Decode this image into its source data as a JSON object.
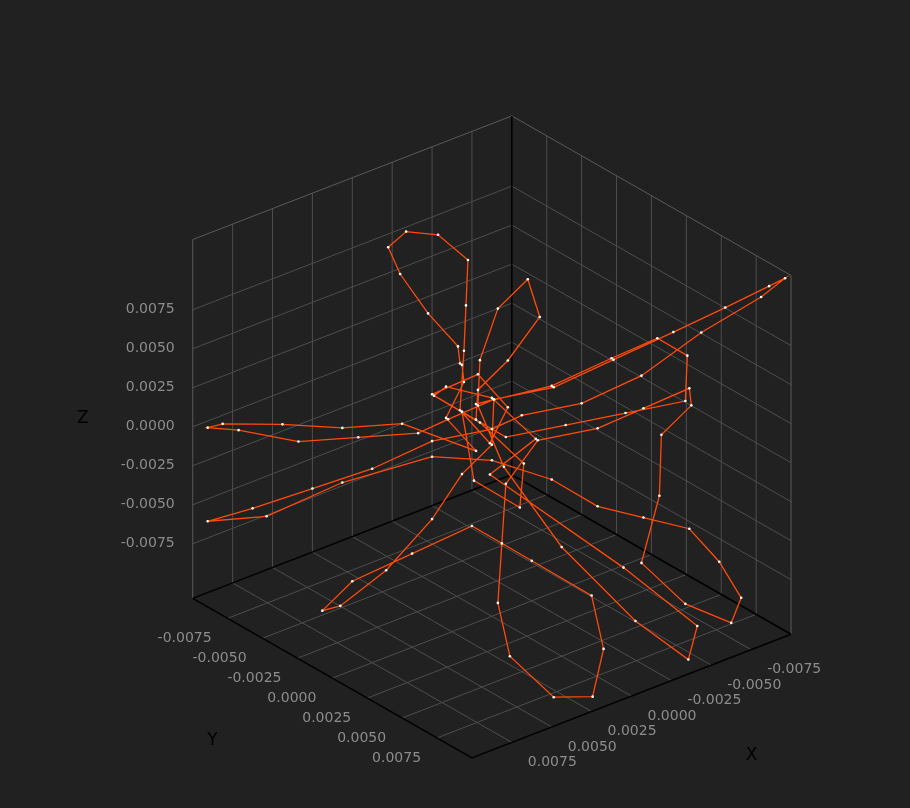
{
  "chart_data": {
    "type": "line3d",
    "xlabel": "X",
    "ylabel": "Y",
    "zlabel": "Z",
    "color": "#ff4a0a",
    "marker": "dot",
    "line_style": "solid",
    "grid": true,
    "xlim": [
      -0.01,
      0.01
    ],
    "ylim": [
      -0.01,
      0.01
    ],
    "zlim": [
      -0.011,
      0.012
    ],
    "xticks": [
      -0.0075,
      {
        "value": -0.005,
        "label": "-0.0050"
      },
      -0.0025,
      {
        "value": 0,
        "label": "0.0000"
      },
      0.0025,
      {
        "value": 0.005,
        "label": "0.0050"
      },
      0.0075
    ],
    "yticks": [
      -0.0075,
      {
        "value": -0.005,
        "label": "-0.0050"
      },
      -0.0025,
      {
        "value": 0,
        "label": "0.0000"
      },
      0.0025,
      {
        "value": 0.005,
        "label": "0.0050"
      },
      0.0075
    ],
    "zticks": [
      -0.0075,
      {
        "value": -0.005,
        "label": "-0.0050"
      },
      -0.0025,
      {
        "value": 0,
        "label": "0.0000"
      },
      0.0025,
      {
        "value": 0.005,
        "label": "0.0050"
      },
      0.0075
    ],
    "x": [
      0.001,
      0.002,
      0,
      -0.001,
      0.001,
      0.002,
      0,
      -0.001,
      -0.002,
      -0.001,
      0.001,
      0.003,
      0.004,
      0.004,
      0.003,
      0.002,
      0.001,
      0,
      0.002,
      0.001,
      0.003,
      0.005,
      0.007,
      0.009,
      0.0095,
      0.008,
      0.006,
      0.004,
      0.002,
      0.001,
      -0.001,
      -0.003,
      -0.005,
      -0.007,
      -0.0085,
      -0.0095,
      -0.0098,
      -0.009,
      -0.007,
      -0.005,
      -0.003,
      -0.001,
      0,
      0.002,
      0.004,
      0.006,
      0.008,
      0.0095,
      0.008,
      0.005,
      0.002,
      0,
      -0.002,
      -0.004,
      -0.006,
      -0.008,
      -0.009,
      -0.0095,
      -0.008,
      -0.006,
      -0.005,
      -0.007,
      -0.008,
      -0.009,
      -0.008,
      -0.006,
      -0.004,
      -0.002,
      0,
      0.002,
      0.004,
      0.005,
      0.004,
      0.002,
      0,
      -0.001,
      0.001,
      0.003,
      0.005,
      0.007,
      0.008,
      0.006,
      0.004,
      0.002,
      0.001,
      0,
      -0.001,
      0.001,
      -0.002,
      -0.004,
      -0.006,
      -0.007,
      -0.006,
      -0.004,
      -0.002,
      0,
      0.001,
      0.002,
      0,
      -0.002,
      -0.001,
      0.001,
      0.002,
      0,
      -0.001,
      0.001,
      -0.003,
      -0.005,
      -0.004,
      -0.002,
      0,
      0.001,
      0,
      -0.001,
      -0.003,
      -0.004,
      -0.003,
      -0.001,
      0,
      0.001
    ],
    "y": [
      -0.001,
      -0.002,
      -0.001,
      0,
      0.001,
      0,
      -0.002,
      -0.003,
      -0.004,
      -0.005,
      -0.005,
      -0.004,
      -0.002,
      0,
      0.001,
      0,
      -0.001,
      -0.002,
      -0.001,
      0,
      -0.003,
      -0.005,
      -0.007,
      -0.009,
      -0.0095,
      -0.009,
      -0.007,
      -0.005,
      -0.003,
      -0.002,
      -0.001,
      0.001,
      0.003,
      0.005,
      0.007,
      0.009,
      0.0098,
      0.009,
      0.007,
      0.005,
      0.003,
      0.001,
      0,
      -0.002,
      -0.004,
      -0.006,
      -0.008,
      -0.0095,
      -0.007,
      -0.005,
      -0.002,
      0,
      0.002,
      0.003,
      0.004,
      0.005,
      0.006,
      0.007,
      0.008,
      0.007,
      0.005,
      0.004,
      0.003,
      0.004,
      0.005,
      0.004,
      0.003,
      0.001,
      0.001,
      0.003,
      0.005,
      0.007,
      0.009,
      0.0095,
      0.008,
      0.006,
      0.004,
      0.002,
      0,
      -0.002,
      -0.003,
      -0.004,
      -0.003,
      -0.002,
      -0.001,
      0,
      -0.001,
      0,
      0.002,
      0.004,
      0.005,
      0.006,
      0.007,
      0.005,
      0.003,
      0.001,
      -0.001,
      0.001,
      0.002,
      0,
      -0.002,
      -0.003,
      -0.001,
      0,
      0.002,
      0.001,
      0.006,
      0.009,
      0.0095,
      0.008,
      0.005,
      0.002,
      -0.001,
      -0.002,
      -0.003,
      -0.002,
      0,
      0,
      -0.001,
      0
    ],
    "z": [
      0.002,
      0.003,
      0.004,
      0.002,
      0.001,
      0.003,
      0.005,
      0.007,
      0.009,
      0.0105,
      0.0115,
      0.0118,
      0.0115,
      0.01,
      0.008,
      0.006,
      0.005,
      0.003,
      0.002,
      0,
      0.001,
      0.0005,
      0.0005,
      0.0003,
      0,
      -0.0005,
      -0.001,
      -0.0005,
      0,
      0.001,
      0.002,
      0.003,
      0.005,
      0.007,
      0.009,
      0.011,
      0.0118,
      0.0105,
      0.008,
      0.005,
      0.003,
      0.002,
      0.001,
      0,
      -0.002,
      -0.0035,
      -0.005,
      -0.006,
      -0.005,
      -0.003,
      -0.001,
      -0.001,
      -0.002,
      -0.004,
      -0.005,
      -0.006,
      -0.008,
      -0.01,
      -0.0105,
      -0.009,
      -0.007,
      -0.004,
      -0.001,
      0.001,
      0.003,
      0.002,
      0.001,
      0,
      -0.002,
      -0.004,
      -0.006,
      -0.008,
      -0.01,
      -0.0105,
      -0.009,
      -0.007,
      -0.005,
      -0.003,
      -0.005,
      -0.007,
      -0.009,
      -0.01,
      -0.008,
      -0.005,
      -0.002,
      0,
      0.002,
      0.003,
      0.004,
      0.006,
      0.007,
      0.006,
      0.004,
      0.003,
      0.002,
      0.001,
      0.002,
      -0.001,
      -0.003,
      -0.002,
      0,
      0.002,
      0.004,
      0.003,
      0.001,
      -0.001,
      -0.006,
      -0.009,
      -0.0105,
      -0.008,
      -0.004,
      0,
      0.002,
      0.004,
      0.006,
      0.008,
      0.007,
      0.005,
      0.003,
      0.002
    ]
  }
}
